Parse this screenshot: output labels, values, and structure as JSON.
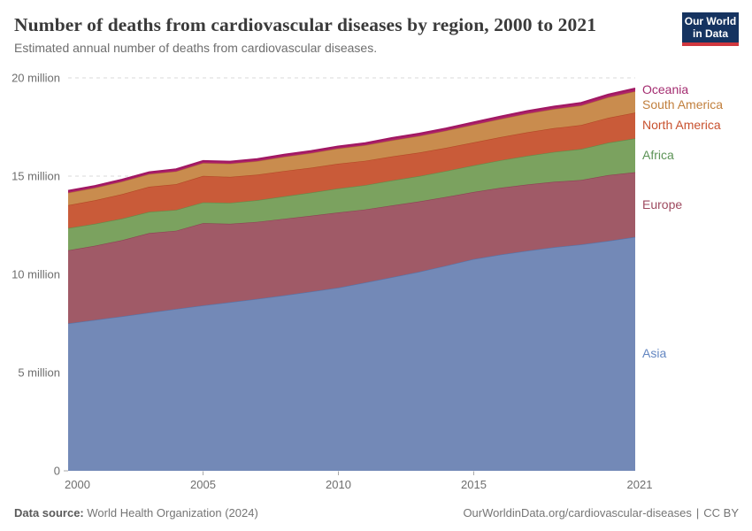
{
  "header": {
    "title": "Number of deaths from cardiovascular diseases by region, 2000 to 2021",
    "subtitle": "Estimated annual number of deaths from cardiovascular diseases.",
    "logo": {
      "line1": "Our World",
      "line2": "in Data",
      "bg_color": "#153360",
      "accent_color": "#d0373e"
    }
  },
  "chart_data": {
    "type": "area",
    "stacked": true,
    "title": "Number of deaths from cardiovascular diseases by region, 2000 to 2021",
    "xlabel": "",
    "ylabel": "",
    "unit": "deaths per year",
    "values_unit": "millions of deaths",
    "grid": true,
    "legend_position": "right",
    "xlim": [
      2000,
      2021
    ],
    "ylim_millions": [
      0,
      20
    ],
    "x": [
      2000,
      2001,
      2002,
      2003,
      2004,
      2005,
      2006,
      2007,
      2008,
      2009,
      2010,
      2011,
      2012,
      2013,
      2014,
      2015,
      2016,
      2017,
      2018,
      2019,
      2020,
      2021
    ],
    "series": [
      {
        "key": "asia",
        "label": "Asia",
        "fill": "#7389B7",
        "line": "#5674A8",
        "label_color": "#6386C1",
        "values": [
          7.5,
          7.68,
          7.86,
          8.05,
          8.24,
          8.42,
          8.58,
          8.75,
          8.93,
          9.12,
          9.32,
          9.58,
          9.85,
          10.13,
          10.44,
          10.77,
          11.0,
          11.2,
          11.38,
          11.52,
          11.7,
          11.9
        ]
      },
      {
        "key": "europe",
        "label": "Europe",
        "fill": "#A05A67",
        "line": "#8D4154",
        "label_color": "#9E4A5F",
        "values": [
          3.72,
          3.78,
          3.88,
          4.05,
          3.98,
          4.19,
          3.99,
          3.92,
          3.9,
          3.86,
          3.83,
          3.72,
          3.66,
          3.58,
          3.5,
          3.42,
          3.4,
          3.37,
          3.33,
          3.28,
          3.35,
          3.3
        ]
      },
      {
        "key": "africa",
        "label": "Africa",
        "fill": "#7BA25F",
        "line": "#648A49",
        "label_color": "#5C9356",
        "values": [
          1.13,
          1.11,
          1.1,
          1.08,
          1.06,
          1.05,
          1.07,
          1.1,
          1.14,
          1.18,
          1.22,
          1.24,
          1.27,
          1.29,
          1.32,
          1.35,
          1.4,
          1.46,
          1.52,
          1.58,
          1.65,
          1.72
        ]
      },
      {
        "key": "north-america",
        "label": "North America",
        "fill": "#C95B39",
        "line": "#B44826",
        "label_color": "#C8512E",
        "values": [
          1.17,
          1.2,
          1.24,
          1.28,
          1.31,
          1.35,
          1.32,
          1.3,
          1.29,
          1.27,
          1.26,
          1.24,
          1.22,
          1.2,
          1.18,
          1.17,
          1.18,
          1.2,
          1.21,
          1.22,
          1.27,
          1.31
        ]
      },
      {
        "key": "south-america",
        "label": "South America",
        "fill": "#C98C4E",
        "line": "#B37433",
        "label_color": "#C17F3C",
        "values": [
          0.63,
          0.63,
          0.64,
          0.64,
          0.65,
          0.65,
          0.67,
          0.69,
          0.72,
          0.74,
          0.77,
          0.79,
          0.82,
          0.84,
          0.87,
          0.9,
          0.92,
          0.95,
          0.97,
          0.99,
          1.04,
          1.08
        ]
      },
      {
        "key": "oceania",
        "label": "Oceania",
        "fill": "#AE2368",
        "line": "#A01762",
        "label_color": "#A42C70",
        "values": [
          0.1,
          0.1,
          0.1,
          0.1,
          0.11,
          0.11,
          0.11,
          0.11,
          0.11,
          0.11,
          0.11,
          0.11,
          0.12,
          0.12,
          0.12,
          0.12,
          0.13,
          0.13,
          0.13,
          0.14,
          0.14,
          0.15
        ]
      }
    ],
    "y_ticks": [
      {
        "value_millions": 0,
        "label": "0"
      },
      {
        "value_millions": 5,
        "label": "5 million"
      },
      {
        "value_millions": 10,
        "label": "10 million"
      },
      {
        "value_millions": 15,
        "label": "15 million"
      },
      {
        "value_millions": 20,
        "label": "20 million"
      }
    ],
    "x_ticks": [
      {
        "value": 2000,
        "label": "2000"
      },
      {
        "value": 2005,
        "label": "2005"
      },
      {
        "value": 2010,
        "label": "2010"
      },
      {
        "value": 2015,
        "label": "2015"
      },
      {
        "value": 2021,
        "label": "2021"
      }
    ]
  },
  "footer": {
    "source_label": "Data source:",
    "source_text": "World Health Organization (2024)",
    "url": "OurWorldinData.org/cardiovascular-diseases",
    "separator": "|",
    "license": "CC BY"
  }
}
